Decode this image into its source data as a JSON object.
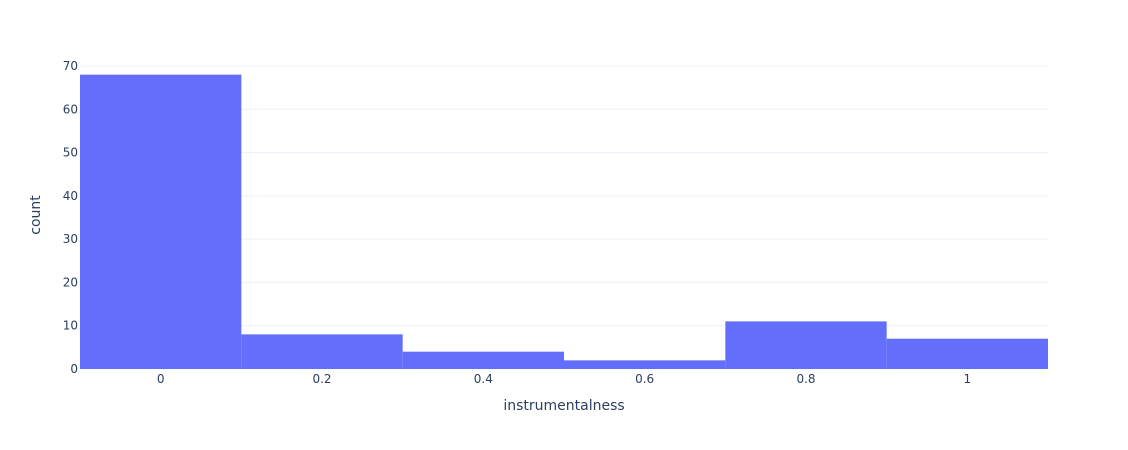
{
  "chart_data": {
    "type": "bar",
    "subtype": "histogram",
    "xlabel": "instrumentalness",
    "ylabel": "count",
    "bins": [
      {
        "start": -0.1,
        "end": 0.1,
        "count": 68
      },
      {
        "start": 0.1,
        "end": 0.3,
        "count": 8
      },
      {
        "start": 0.3,
        "end": 0.5,
        "count": 4
      },
      {
        "start": 0.5,
        "end": 0.7,
        "count": 2
      },
      {
        "start": 0.7,
        "end": 0.9,
        "count": 11
      },
      {
        "start": 0.9,
        "end": 1.1,
        "count": 7
      }
    ],
    "xlim": [
      -0.1,
      1.1
    ],
    "ylim": [
      0,
      70
    ],
    "x_ticks": [
      0,
      0.2,
      0.4,
      0.6,
      0.8,
      1
    ],
    "x_tick_labels": [
      "0",
      "0.2",
      "0.4",
      "0.6",
      "0.8",
      "1"
    ],
    "y_ticks": [
      0,
      10,
      20,
      30,
      40,
      50,
      60,
      70
    ],
    "y_tick_labels": [
      "0",
      "10",
      "20",
      "30",
      "40",
      "50",
      "60",
      "70"
    ],
    "grid": true,
    "bar_color": "#636efa",
    "grid_color": "#ebf0f8"
  }
}
